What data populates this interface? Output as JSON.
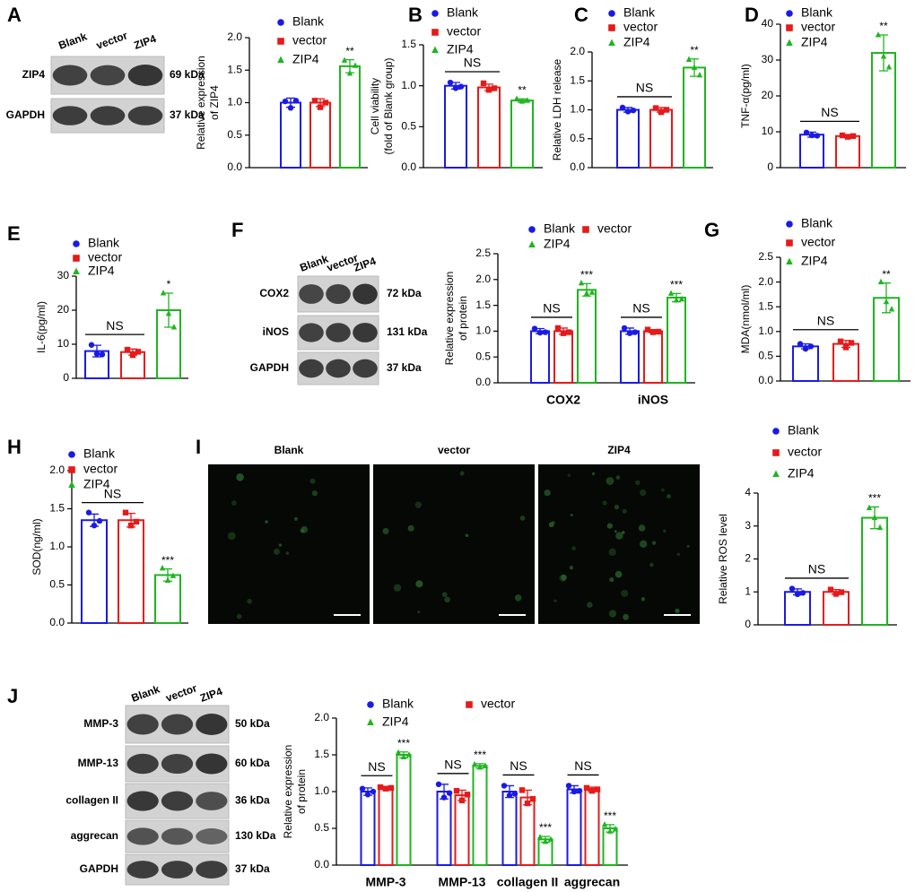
{
  "panel_labels": [
    "A",
    "B",
    "C",
    "D",
    "E",
    "F",
    "G",
    "H",
    "I",
    "J"
  ],
  "blots": [
    {
      "lanes": [
        "Blank",
        "vector",
        "ZIP4"
      ],
      "rows": [
        {
          "label": "ZIP4",
          "size": "69 kDa"
        },
        {
          "label": "GAPDH",
          "size": "37 kDa"
        }
      ]
    },
    {
      "lanes": [
        "Blank",
        "vector",
        "ZIP4"
      ],
      "rows": [
        {
          "label": "COX2",
          "size": "72 kDa"
        },
        {
          "label": "iNOS",
          "size": "131 kDa"
        },
        {
          "label": "GAPDH",
          "size": "37 kDa"
        }
      ]
    },
    {
      "lanes": [
        "Blank",
        "vector",
        "ZIP4"
      ],
      "rows": [
        {
          "label": "MMP-3",
          "size": "50 kDa"
        },
        {
          "label": "MMP-13",
          "size": "60 kDa"
        },
        {
          "label": "collagen II",
          "size": "36 kDa"
        },
        {
          "label": "aggrecan",
          "size": "130 kDa"
        },
        {
          "label": "GAPDH",
          "size": "37 kDa"
        }
      ]
    }
  ],
  "images": {
    "titles": [
      "Blank",
      "vector",
      "ZIP4"
    ]
  },
  "chart_data": [
    {
      "type": "bar",
      "ylabel": [
        "Relative expression",
        "of ZIP4"
      ],
      "ylim": [
        0,
        2
      ],
      "yticks": [
        {
          "value": 0,
          "label": "0.0"
        },
        0.5,
        {
          "value": 1,
          "label": "1.0"
        },
        1.5,
        {
          "value": 2,
          "label": "2.0"
        }
      ],
      "series": [
        {
          "name": "Blank",
          "color": "#1a1ae6",
          "values": [
            1.0
          ],
          "errors": [
            0.07
          ],
          "points": [
            [
              1.02,
              0.92,
              1.03
            ]
          ]
        },
        {
          "name": "vector",
          "color": "#e61a1a",
          "values": [
            1.0
          ],
          "errors": [
            0.06
          ],
          "points": [
            [
              1.03,
              0.93,
              1.0
            ]
          ]
        },
        {
          "name": "ZIP4",
          "color": "#1fb51f",
          "values": [
            1.56
          ],
          "errors": [
            0.1
          ],
          "points": [
            [
              1.65,
              1.45,
              1.57
            ]
          ]
        }
      ],
      "sig_labels": [
        "**"
      ]
    },
    {
      "type": "bar",
      "ylabel": [
        "Cell viability",
        "(fold of Blank group)"
      ],
      "ylim": [
        0,
        1.5
      ],
      "yticks": [
        {
          "value": 0,
          "label": "0.0"
        },
        0.5,
        {
          "value": 1,
          "label": "1.0"
        },
        1.5
      ],
      "series": [
        {
          "name": "Blank",
          "color": "#1a1ae6",
          "values": [
            1.0
          ],
          "errors": [
            0.04
          ],
          "points": [
            [
              1.04,
              0.97,
              0.99
            ]
          ]
        },
        {
          "name": "vector",
          "color": "#e61a1a",
          "values": [
            0.98
          ],
          "errors": [
            0.04
          ],
          "points": [
            [
              1.03,
              0.95,
              0.97
            ]
          ]
        },
        {
          "name": "ZIP4",
          "color": "#1fb51f",
          "values": [
            0.82
          ],
          "errors": [
            0.02
          ],
          "points": [
            [
              0.84,
              0.81,
              0.82
            ]
          ]
        }
      ],
      "ns_label": "NS",
      "sig_labels": [
        "**"
      ]
    },
    {
      "type": "bar",
      "ylabel": [
        "Relative LDH release"
      ],
      "ylim": [
        0,
        2
      ],
      "yticks": [
        {
          "value": 0,
          "label": "0.0"
        },
        0.5,
        {
          "value": 1,
          "label": "1.0"
        },
        1.5,
        {
          "value": 2,
          "label": "2.0"
        }
      ],
      "series": [
        {
          "name": "Blank",
          "color": "#1a1ae6",
          "values": [
            1.0
          ],
          "errors": [
            0.04
          ],
          "points": [
            [
              1.04,
              0.97,
              0.99
            ]
          ]
        },
        {
          "name": "vector",
          "color": "#e61a1a",
          "values": [
            1.0
          ],
          "errors": [
            0.04
          ],
          "points": [
            [
              1.03,
              0.96,
              1.0
            ]
          ]
        },
        {
          "name": "ZIP4",
          "color": "#1fb51f",
          "values": [
            1.73
          ],
          "errors": [
            0.15
          ],
          "points": [
            [
              1.87,
              1.73,
              1.6
            ]
          ]
        }
      ],
      "ns_label": "NS",
      "sig_labels": [
        "**"
      ]
    },
    {
      "type": "bar",
      "ylabel": [
        "TNF-α(pg/ml)"
      ],
      "ylim": [
        0,
        40
      ],
      "yticks": [
        0,
        10,
        20,
        30,
        40
      ],
      "series": [
        {
          "name": "Blank",
          "color": "#1a1ae6",
          "values": [
            9.2
          ],
          "errors": [
            0.7
          ],
          "points": [
            [
              9.8,
              9.0,
              8.9
            ]
          ]
        },
        {
          "name": "vector",
          "color": "#e61a1a",
          "values": [
            8.8
          ],
          "errors": [
            0.4
          ],
          "points": [
            [
              9.0,
              8.6,
              8.8
            ]
          ]
        },
        {
          "name": "ZIP4",
          "color": "#1fb51f",
          "values": [
            32
          ],
          "errors": [
            5
          ],
          "points": [
            [
              37,
              31,
              28
            ]
          ]
        }
      ],
      "ns_label": "NS",
      "sig_labels": [
        "**"
      ]
    },
    {
      "type": "bar",
      "ylabel": [
        "IL-6(pg/ml)"
      ],
      "ylim": [
        0,
        30
      ],
      "yticks": [
        0,
        10,
        20,
        30
      ],
      "series": [
        {
          "name": "Blank",
          "color": "#1a1ae6",
          "values": [
            8
          ],
          "errors": [
            1.7
          ],
          "points": [
            [
              9.8,
              7.2,
              7.0
            ]
          ]
        },
        {
          "name": "vector",
          "color": "#e61a1a",
          "values": [
            7.7
          ],
          "errors": [
            0.9
          ],
          "points": [
            [
              8.4,
              6.8,
              7.8
            ]
          ]
        },
        {
          "name": "ZIP4",
          "color": "#1fb51f",
          "values": [
            20
          ],
          "errors": [
            5
          ],
          "points": [
            [
              25,
              19,
              15
            ]
          ]
        }
      ],
      "ns_label": "NS",
      "sig_labels": [
        "*"
      ]
    },
    {
      "type": "bar",
      "ylabel": [
        "Relative expression",
        "of protein"
      ],
      "categories": [
        "COX2",
        "iNOS"
      ],
      "ylim": [
        0,
        2.5
      ],
      "yticks": [
        {
          "value": 0,
          "label": "0.0"
        },
        0.5,
        {
          "value": 1,
          "label": "1.0"
        },
        1.5,
        {
          "value": 2,
          "label": "2.0"
        },
        2.5
      ],
      "series": [
        {
          "name": "Blank",
          "color": "#1a1ae6",
          "values": [
            1.0,
            1.0
          ],
          "errors": [
            0.05,
            0.06
          ],
          "points": [
            [
              1.05,
              0.97,
              0.98
            ],
            [
              1.06,
              0.96,
              0.98
            ]
          ]
        },
        {
          "name": "vector",
          "color": "#e61a1a",
          "values": [
            1.0,
            1.0
          ],
          "errors": [
            0.06,
            0.03
          ],
          "points": [
            [
              1.06,
              0.96,
              0.98
            ],
            [
              1.03,
              0.98,
              0.99
            ]
          ]
        },
        {
          "name": "ZIP4",
          "color": "#1fb51f",
          "values": [
            1.8,
            1.65
          ],
          "errors": [
            0.12,
            0.08
          ],
          "points": [
            [
              1.93,
              1.73,
              1.75
            ],
            [
              1.73,
              1.6,
              1.62
            ]
          ]
        }
      ],
      "ns_label": "NS",
      "sig_labels": [
        "***",
        "***"
      ]
    },
    {
      "type": "bar",
      "ylabel": [
        "MDA(nmol/ml)"
      ],
      "ylim": [
        0,
        2.5
      ],
      "yticks": [
        {
          "value": 0,
          "label": "0.0"
        },
        0.5,
        {
          "value": 1,
          "label": "1.0"
        },
        1.5,
        {
          "value": 2,
          "label": "2.0"
        },
        2.5
      ],
      "series": [
        {
          "name": "Blank",
          "color": "#1a1ae6",
          "values": [
            0.7
          ],
          "errors": [
            0.05
          ],
          "points": [
            [
              0.75,
              0.65,
              0.7
            ]
          ]
        },
        {
          "name": "vector",
          "color": "#e61a1a",
          "values": [
            0.75
          ],
          "errors": [
            0.07
          ],
          "points": [
            [
              0.8,
              0.68,
              0.77
            ]
          ]
        },
        {
          "name": "ZIP4",
          "color": "#1fb51f",
          "values": [
            1.68
          ],
          "errors": [
            0.3
          ],
          "points": [
            [
              2.0,
              1.6,
              1.45
            ]
          ]
        }
      ],
      "ns_label": "NS",
      "sig_labels": [
        "**"
      ]
    },
    {
      "type": "bar",
      "ylabel": [
        "SOD(ng/ml)"
      ],
      "ylim": [
        0,
        2
      ],
      "yticks": [
        {
          "value": 0,
          "label": "0.0"
        },
        0.5,
        {
          "value": 1,
          "label": "1.0"
        },
        1.5,
        {
          "value": 2,
          "label": "2.0"
        }
      ],
      "series": [
        {
          "name": "Blank",
          "color": "#1a1ae6",
          "values": [
            1.35
          ],
          "errors": [
            0.08
          ],
          "points": [
            [
              1.45,
              1.28,
              1.34
            ]
          ]
        },
        {
          "name": "vector",
          "color": "#e61a1a",
          "values": [
            1.35
          ],
          "errors": [
            0.09
          ],
          "points": [
            [
              1.45,
              1.28,
              1.33
            ]
          ]
        },
        {
          "name": "ZIP4",
          "color": "#1fb51f",
          "values": [
            0.63
          ],
          "errors": [
            0.08
          ],
          "points": [
            [
              0.72,
              0.56,
              0.62
            ]
          ]
        }
      ],
      "ns_label": "NS",
      "sig_labels": [
        "***"
      ]
    },
    {
      "type": "bar",
      "ylabel": [
        "Relative ROS level"
      ],
      "ylim": [
        0,
        4
      ],
      "yticks": [
        0,
        1,
        2,
        3,
        4
      ],
      "series": [
        {
          "name": "Blank",
          "color": "#1a1ae6",
          "values": [
            1.0
          ],
          "errors": [
            0.09
          ],
          "points": [
            [
              1.1,
              0.93,
              0.97
            ]
          ]
        },
        {
          "name": "vector",
          "color": "#e61a1a",
          "values": [
            1.0
          ],
          "errors": [
            0.07
          ],
          "points": [
            [
              1.07,
              0.94,
              0.99
            ]
          ]
        },
        {
          "name": "ZIP4",
          "color": "#1fb51f",
          "values": [
            3.25
          ],
          "errors": [
            0.33
          ],
          "points": [
            [
              3.55,
              3.25,
              2.95
            ]
          ]
        }
      ],
      "ns_label": "NS",
      "sig_labels": [
        "***"
      ]
    },
    {
      "type": "bar",
      "ylabel": [
        "Relative expression",
        "of protein"
      ],
      "categories": [
        "MMP-3",
        "MMP-13",
        "collagen II",
        "aggrecan"
      ],
      "ylim": [
        0,
        2
      ],
      "yticks": [
        {
          "value": 0,
          "label": "0.0"
        },
        0.5,
        {
          "value": 1,
          "label": "1.0"
        },
        1.5,
        {
          "value": 2,
          "label": "2.0"
        }
      ],
      "series": [
        {
          "name": "Blank",
          "color": "#1a1ae6",
          "values": [
            1.0,
            1.0,
            1.0,
            1.03
          ],
          "errors": [
            0.05,
            0.1,
            0.08,
            0.05
          ],
          "points": [
            [
              1.04,
              0.96,
              1.0
            ],
            [
              1.1,
              0.92,
              0.98
            ],
            [
              1.08,
              0.95,
              0.97
            ],
            [
              1.08,
              1.0,
              1.01
            ]
          ]
        },
        {
          "name": "vector",
          "color": "#e61a1a",
          "values": [
            1.05,
            0.95,
            0.92,
            1.03
          ],
          "errors": [
            0.02,
            0.07,
            0.1,
            0.03
          ],
          "points": [
            [
              1.06,
              1.04,
              1.05
            ],
            [
              1.01,
              0.88,
              0.96
            ],
            [
              1.02,
              0.84,
              0.9
            ],
            [
              1.05,
              1.01,
              1.03
            ]
          ]
        },
        {
          "name": "ZIP4",
          "color": "#1fb51f",
          "values": [
            1.5,
            1.35,
            0.35,
            0.5
          ],
          "errors": [
            0.04,
            0.03,
            0.04,
            0.05
          ],
          "points": [
            [
              1.53,
              1.47,
              1.5
            ],
            [
              1.37,
              1.33,
              1.35
            ],
            [
              0.38,
              0.32,
              0.35
            ],
            [
              0.55,
              0.46,
              0.49
            ]
          ]
        }
      ],
      "ns_label": "NS",
      "sig_labels": [
        "***",
        "***",
        "***",
        "***"
      ]
    }
  ]
}
